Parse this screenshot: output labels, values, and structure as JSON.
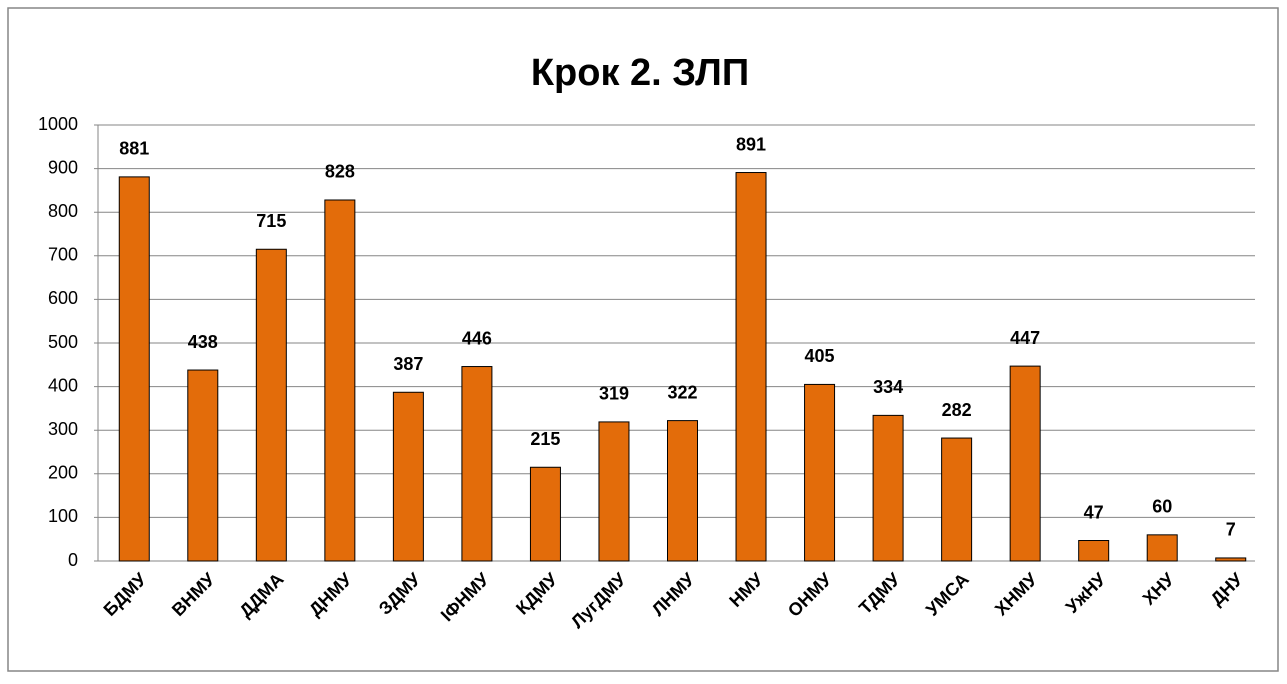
{
  "chart_data": {
    "type": "bar",
    "title": "Крок 2. ЗЛП",
    "categories": [
      "БДМУ",
      "ВНМУ",
      "ДДМА",
      "ДНМУ",
      "ЗДМУ",
      "ІФНМУ",
      "КДМУ",
      "ЛугДМУ",
      "ЛНМУ",
      "НМУ",
      "ОНМУ",
      "ТДМУ",
      "УМСА",
      "ХНМУ",
      "УжНУ",
      "ХНУ",
      "ДНУ"
    ],
    "values": [
      881,
      438,
      715,
      828,
      387,
      446,
      215,
      319,
      322,
      891,
      405,
      334,
      282,
      447,
      47,
      60,
      7
    ],
    "color": "#e36c0a",
    "ylim": [
      0,
      1000
    ],
    "yticks": [
      0,
      100,
      200,
      300,
      400,
      500,
      600,
      700,
      800,
      900,
      1000
    ],
    "grid": true
  }
}
